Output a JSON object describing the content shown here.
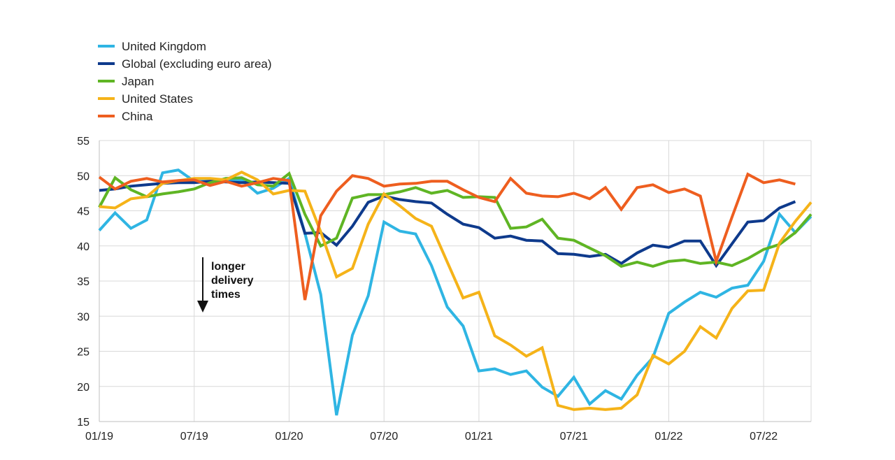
{
  "chart_data": {
    "type": "line",
    "title": "",
    "xlabel": "",
    "ylabel": "",
    "ylim": [
      15,
      55
    ],
    "yticks": [
      15,
      20,
      25,
      30,
      35,
      40,
      45,
      50,
      55
    ],
    "x_tick_labels": [
      "01/19",
      "07/19",
      "01/20",
      "07/20",
      "01/21",
      "07/21",
      "01/22",
      "07/22"
    ],
    "x_tick_month_index": [
      0,
      6,
      12,
      18,
      24,
      30,
      36,
      42
    ],
    "x_range_months": [
      0,
      45
    ],
    "grid": "vertical and horizontal",
    "legend_position": "top-left",
    "annotation": {
      "lines": [
        "longer",
        "delivery",
        "times"
      ],
      "arrow": "down"
    },
    "series": [
      {
        "name": "United Kingdom",
        "color": "#2FB5E3",
        "values": [
          42.2,
          44.7,
          42.5,
          43.7,
          50.4,
          50.8,
          49.2,
          49.2,
          49.3,
          49.4,
          47.5,
          48.2,
          49.6,
          41.8,
          33.1,
          15.9,
          27.3,
          32.9,
          43.4,
          42.1,
          41.7,
          37.2,
          31.3,
          28.6,
          22.2,
          22.5,
          21.7,
          22.2,
          19.9,
          18.6,
          21.3,
          17.5,
          19.4,
          18.2,
          21.6,
          24.1,
          30.4,
          32.0,
          33.4,
          32.7,
          34.0,
          34.4,
          37.8,
          44.5,
          41.9,
          44.2
        ]
      },
      {
        "name": "Global (excluding euro area)",
        "color": "#0E3A8C",
        "values": [
          47.9,
          48.1,
          48.5,
          48.7,
          48.9,
          49.0,
          49.0,
          49.2,
          49.1,
          49.0,
          49.1,
          49.0,
          48.9,
          41.8,
          41.9,
          40.1,
          42.8,
          46.2,
          47.1,
          46.6,
          46.3,
          46.1,
          44.5,
          43.1,
          42.6,
          41.1,
          41.4,
          40.8,
          40.7,
          38.9,
          38.8,
          38.5,
          38.8,
          37.5,
          39.0,
          40.1,
          39.8,
          40.7,
          40.7,
          37.2,
          40.3,
          43.4,
          43.6,
          45.4,
          46.3,
          null
        ]
      },
      {
        "name": "Japan",
        "color": "#5FB524",
        "values": [
          45.5,
          49.7,
          48.0,
          47.0,
          47.4,
          47.7,
          48.1,
          49.0,
          49.6,
          49.7,
          48.7,
          48.5,
          50.3,
          44.5,
          40.0,
          41.1,
          46.8,
          47.3,
          47.3,
          47.7,
          48.3,
          47.5,
          47.9,
          46.9,
          47.0,
          46.9,
          42.5,
          42.7,
          43.8,
          41.1,
          40.8,
          39.7,
          38.6,
          37.1,
          37.7,
          37.1,
          37.8,
          38.0,
          37.5,
          37.7,
          37.2,
          38.2,
          39.5,
          40.2,
          41.9,
          44.5
        ]
      },
      {
        "name": "United States",
        "color": "#F5B319",
        "values": [
          45.6,
          45.4,
          46.7,
          47.0,
          48.9,
          49.3,
          49.6,
          49.6,
          49.4,
          50.5,
          49.4,
          47.4,
          47.9,
          47.8,
          42.0,
          35.6,
          36.8,
          43.1,
          47.4,
          45.7,
          43.9,
          42.8,
          37.7,
          32.6,
          33.4,
          27.2,
          25.9,
          24.3,
          25.5,
          17.3,
          16.7,
          16.9,
          16.7,
          16.9,
          18.8,
          24.4,
          23.2,
          25.0,
          28.5,
          26.9,
          31.1,
          33.6,
          33.7,
          40.4,
          43.5,
          46.2
        ]
      },
      {
        "name": "China",
        "color": "#EE5E1F",
        "values": [
          49.8,
          48.1,
          49.2,
          49.6,
          49.1,
          49.3,
          49.4,
          48.6,
          49.2,
          48.5,
          49.0,
          49.6,
          49.3,
          32.3,
          44.3,
          47.8,
          50.0,
          49.6,
          48.5,
          48.8,
          48.9,
          49.2,
          49.2,
          48.0,
          46.9,
          46.3,
          49.6,
          47.5,
          47.1,
          47.0,
          47.5,
          46.7,
          48.3,
          45.2,
          48.3,
          48.7,
          47.6,
          48.1,
          47.1,
          37.8,
          44.1,
          50.2,
          49.0,
          49.4,
          48.8,
          null
        ]
      }
    ]
  }
}
